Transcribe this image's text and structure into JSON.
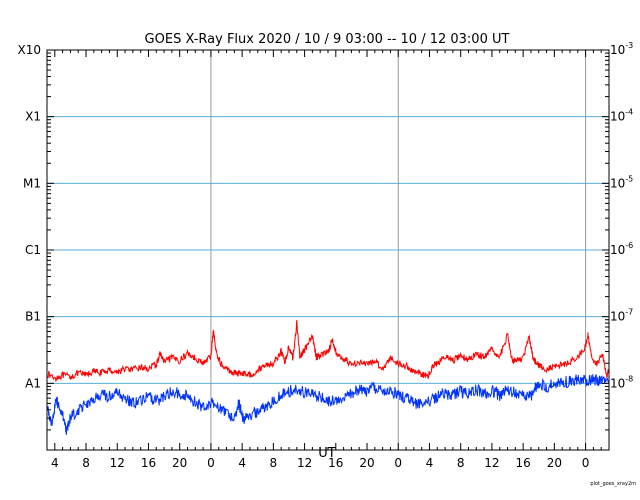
{
  "chart_data": {
    "type": "line",
    "title": "GOES X-Ray Flux   2020 / 10 /  9   03:00 -- 10 / 12   03:00   UT",
    "xlabel": "UT",
    "credit": "plot_goes_xray2m",
    "x_range_hours": [
      0,
      72
    ],
    "x_ticks": [
      {
        "h": 1,
        "label": "4"
      },
      {
        "h": 5,
        "label": "8"
      },
      {
        "h": 9,
        "label": "12"
      },
      {
        "h": 13,
        "label": "16"
      },
      {
        "h": 17,
        "label": "20"
      },
      {
        "h": 21,
        "label": "0"
      },
      {
        "h": 25,
        "label": "4"
      },
      {
        "h": 29,
        "label": "8"
      },
      {
        "h": 33,
        "label": "12"
      },
      {
        "h": 37,
        "label": "16"
      },
      {
        "h": 41,
        "label": "20"
      },
      {
        "h": 45,
        "label": "0"
      },
      {
        "h": 49,
        "label": "4"
      },
      {
        "h": 53,
        "label": "8"
      },
      {
        "h": 57,
        "label": "12"
      },
      {
        "h": 61,
        "label": "16"
      },
      {
        "h": 65,
        "label": "20"
      },
      {
        "h": 69,
        "label": "0"
      }
    ],
    "y_scale": "log",
    "ylim": [
      -9,
      -3
    ],
    "y_left_labels": [
      {
        "exp": -3,
        "label": "X10"
      },
      {
        "exp": -4,
        "label": "X1"
      },
      {
        "exp": -5,
        "label": "M1"
      },
      {
        "exp": -6,
        "label": "C1"
      },
      {
        "exp": -7,
        "label": "B1"
      },
      {
        "exp": -8,
        "label": "A1"
      }
    ],
    "y_right_labels": [
      {
        "exp": -3,
        "base": "10",
        "sup": "-3"
      },
      {
        "exp": -4,
        "base": "10",
        "sup": "-4"
      },
      {
        "exp": -5,
        "base": "10",
        "sup": "-5"
      },
      {
        "exp": -6,
        "base": "10",
        "sup": "-6"
      },
      {
        "exp": -7,
        "base": "10",
        "sup": "-7"
      },
      {
        "exp": -8,
        "base": "10",
        "sup": "-8"
      }
    ],
    "grid_flux_levels": [
      -8,
      -7,
      -6,
      -5,
      -4
    ],
    "day_boundaries_h": [
      21,
      45,
      69
    ],
    "series": [
      {
        "color": "#ff0000",
        "points": [
          [
            0.0,
            -7.86
          ],
          [
            1.0,
            -7.92
          ],
          [
            2.0,
            -7.88
          ],
          [
            3.0,
            -7.9
          ],
          [
            4.0,
            -7.85
          ],
          [
            5.0,
            -7.87
          ],
          [
            6.0,
            -7.82
          ],
          [
            7.0,
            -7.84
          ],
          [
            8.0,
            -7.8
          ],
          [
            9.0,
            -7.83
          ],
          [
            10.0,
            -7.78
          ],
          [
            11.0,
            -7.8
          ],
          [
            12.0,
            -7.76
          ],
          [
            13.0,
            -7.78
          ],
          [
            14.0,
            -7.72
          ],
          [
            14.5,
            -7.55
          ],
          [
            15.0,
            -7.68
          ],
          [
            16.0,
            -7.62
          ],
          [
            17.0,
            -7.66
          ],
          [
            18.0,
            -7.55
          ],
          [
            19.0,
            -7.62
          ],
          [
            20.0,
            -7.7
          ],
          [
            21.0,
            -7.6
          ],
          [
            21.3,
            -7.2
          ],
          [
            21.7,
            -7.55
          ],
          [
            22.5,
            -7.75
          ],
          [
            23.5,
            -7.82
          ],
          [
            24.2,
            -7.85
          ],
          [
            25.0,
            -7.84
          ],
          [
            26.0,
            -7.88
          ],
          [
            27.0,
            -7.8
          ],
          [
            28.0,
            -7.72
          ],
          [
            29.0,
            -7.7
          ],
          [
            30.0,
            -7.52
          ],
          [
            30.5,
            -7.68
          ],
          [
            31.0,
            -7.45
          ],
          [
            31.5,
            -7.62
          ],
          [
            32.0,
            -7.1
          ],
          [
            32.4,
            -7.6
          ],
          [
            33.0,
            -7.5
          ],
          [
            34.0,
            -7.3
          ],
          [
            34.5,
            -7.6
          ],
          [
            35.0,
            -7.58
          ],
          [
            36.0,
            -7.52
          ],
          [
            36.6,
            -7.35
          ],
          [
            37.2,
            -7.6
          ],
          [
            38.0,
            -7.62
          ],
          [
            39.0,
            -7.72
          ],
          [
            40.0,
            -7.68
          ],
          [
            41.0,
            -7.72
          ],
          [
            42.0,
            -7.66
          ],
          [
            43.0,
            -7.78
          ],
          [
            44.0,
            -7.62
          ],
          [
            45.0,
            -7.7
          ],
          [
            46.0,
            -7.74
          ],
          [
            47.0,
            -7.82
          ],
          [
            48.0,
            -7.86
          ],
          [
            48.8,
            -7.9
          ],
          [
            49.5,
            -7.72
          ],
          [
            50.0,
            -7.7
          ],
          [
            51.0,
            -7.6
          ],
          [
            52.0,
            -7.66
          ],
          [
            53.0,
            -7.58
          ],
          [
            54.0,
            -7.65
          ],
          [
            55.0,
            -7.55
          ],
          [
            56.0,
            -7.62
          ],
          [
            57.0,
            -7.5
          ],
          [
            58.0,
            -7.6
          ],
          [
            59.0,
            -7.28
          ],
          [
            59.6,
            -7.64
          ],
          [
            60.0,
            -7.66
          ],
          [
            61.0,
            -7.62
          ],
          [
            61.8,
            -7.3
          ],
          [
            62.3,
            -7.64
          ],
          [
            63.0,
            -7.72
          ],
          [
            64.0,
            -7.8
          ],
          [
            65.0,
            -7.75
          ],
          [
            66.0,
            -7.72
          ],
          [
            67.0,
            -7.68
          ],
          [
            68.0,
            -7.6
          ],
          [
            69.0,
            -7.45
          ],
          [
            69.3,
            -7.28
          ],
          [
            69.8,
            -7.62
          ],
          [
            70.5,
            -7.7
          ],
          [
            71.2,
            -7.58
          ],
          [
            71.7,
            -7.88
          ],
          [
            72.0,
            -7.8
          ]
        ]
      },
      {
        "color": "#0033ff",
        "points": [
          [
            0.0,
            -8.35
          ],
          [
            0.6,
            -8.6
          ],
          [
            1.2,
            -8.25
          ],
          [
            2.0,
            -8.45
          ],
          [
            2.5,
            -8.75
          ],
          [
            3.0,
            -8.5
          ],
          [
            4.0,
            -8.4
          ],
          [
            5.0,
            -8.3
          ],
          [
            6.0,
            -8.25
          ],
          [
            7.0,
            -8.18
          ],
          [
            8.0,
            -8.2
          ],
          [
            9.0,
            -8.15
          ],
          [
            10.0,
            -8.22
          ],
          [
            11.0,
            -8.3
          ],
          [
            12.0,
            -8.26
          ],
          [
            13.0,
            -8.2
          ],
          [
            14.0,
            -8.28
          ],
          [
            15.0,
            -8.18
          ],
          [
            16.0,
            -8.12
          ],
          [
            17.0,
            -8.16
          ],
          [
            18.0,
            -8.18
          ],
          [
            19.0,
            -8.28
          ],
          [
            20.0,
            -8.36
          ],
          [
            21.0,
            -8.28
          ],
          [
            22.0,
            -8.35
          ],
          [
            23.0,
            -8.45
          ],
          [
            24.0,
            -8.5
          ],
          [
            24.6,
            -8.3
          ],
          [
            25.2,
            -8.55
          ],
          [
            26.0,
            -8.48
          ],
          [
            27.0,
            -8.42
          ],
          [
            28.0,
            -8.35
          ],
          [
            29.0,
            -8.25
          ],
          [
            30.0,
            -8.18
          ],
          [
            31.0,
            -8.12
          ],
          [
            32.0,
            -8.1
          ],
          [
            33.0,
            -8.14
          ],
          [
            34.0,
            -8.18
          ],
          [
            35.0,
            -8.2
          ],
          [
            36.0,
            -8.26
          ],
          [
            37.0,
            -8.28
          ],
          [
            38.0,
            -8.2
          ],
          [
            39.0,
            -8.16
          ],
          [
            40.0,
            -8.08
          ],
          [
            41.0,
            -8.12
          ],
          [
            42.0,
            -8.06
          ],
          [
            43.0,
            -8.14
          ],
          [
            44.0,
            -8.1
          ],
          [
            45.0,
            -8.18
          ],
          [
            46.0,
            -8.22
          ],
          [
            47.0,
            -8.28
          ],
          [
            48.0,
            -8.32
          ],
          [
            49.5,
            -8.22
          ],
          [
            50.0,
            -8.2
          ],
          [
            51.0,
            -8.15
          ],
          [
            52.0,
            -8.18
          ],
          [
            53.0,
            -8.12
          ],
          [
            54.0,
            -8.16
          ],
          [
            55.0,
            -8.1
          ],
          [
            56.0,
            -8.15
          ],
          [
            57.0,
            -8.12
          ],
          [
            58.0,
            -8.18
          ],
          [
            59.0,
            -8.1
          ],
          [
            60.0,
            -8.14
          ],
          [
            61.0,
            -8.16
          ],
          [
            62.0,
            -8.2
          ],
          [
            62.4,
            -8.1
          ],
          [
            63.0,
            -8.02
          ],
          [
            64.0,
            -8.05
          ],
          [
            65.0,
            -8.0
          ],
          [
            66.0,
            -7.98
          ],
          [
            67.0,
            -7.97
          ],
          [
            68.0,
            -7.95
          ],
          [
            69.0,
            -7.96
          ],
          [
            70.0,
            -7.94
          ],
          [
            71.0,
            -7.96
          ],
          [
            72.0,
            -7.98
          ]
        ]
      }
    ]
  }
}
